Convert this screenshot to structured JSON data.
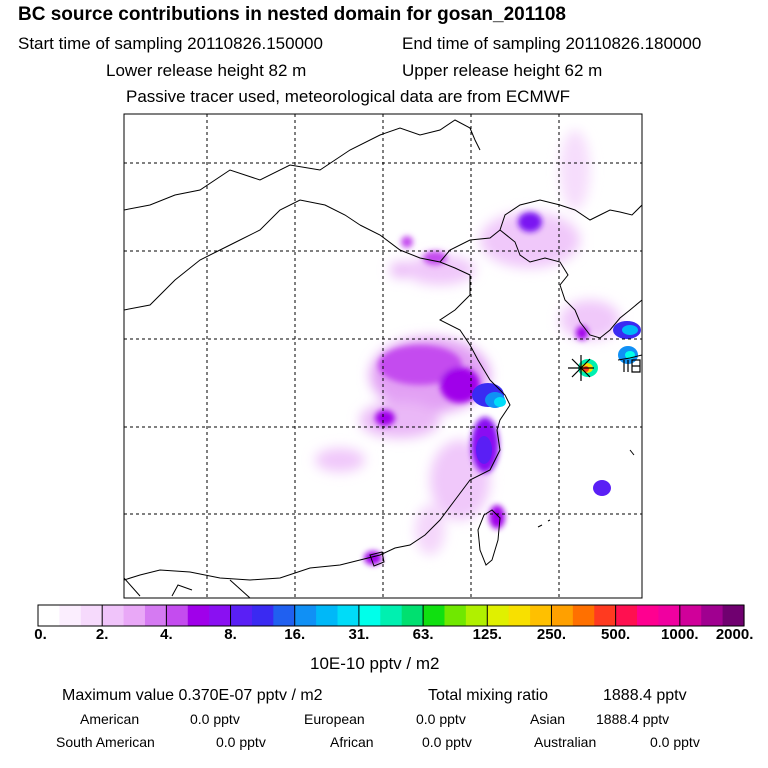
{
  "header": {
    "title": "BC  source contributions in nested domain for gosan_201108",
    "start_label": "Start time of sampling 20110826.150000",
    "end_label": "End time of sampling 20110826.180000",
    "lower_label": "Lower release height   82 m",
    "upper_label": "Upper release height   62 m",
    "tracer_label": "Passive tracer used, meteorological data are from ECMWF"
  },
  "chart_data": {
    "type": "heatmap",
    "title": "BC  source contributions in nested domain for gosan_201108",
    "colorbar": {
      "unit": "10E-10 pptv / m2",
      "ticks": [
        "0.",
        "2.",
        "4.",
        "8.",
        "16.",
        "31.",
        "63.",
        "125.",
        "250.",
        "500.",
        "1000.",
        "2000."
      ],
      "colors": [
        "#ffffff",
        "#fbeefe",
        "#f6dafc",
        "#f0c4fa",
        "#e9a8f7",
        "#d57af2",
        "#c44cef",
        "#a000ea",
        "#8a10f2",
        "#5a1ff5",
        "#3a2af2",
        "#2060f0",
        "#1090f5",
        "#00b8f8",
        "#00dcf8",
        "#00ffea",
        "#00f0b0",
        "#00e070",
        "#10e010",
        "#70e800",
        "#b0f000",
        "#e0f000",
        "#f8e000",
        "#ffc000",
        "#ffa000",
        "#ff7000",
        "#ff3a20",
        "#ff1050",
        "#ff0090",
        "#f000a0",
        "#d0009a",
        "#a00090",
        "#700070"
      ]
    },
    "xlabel": "",
    "ylabel": "",
    "source_marker": "gosan receptor (star)"
  },
  "footer": {
    "max_label": "Maximum value  0.370E-07 pptv / m2",
    "total_label": "Total mixing ratio",
    "total_value": "1888.4 pptv",
    "regions": [
      {
        "name": "American",
        "value": "0.0 pptv"
      },
      {
        "name": "European",
        "value": "0.0 pptv"
      },
      {
        "name": "Asian",
        "value": "1888.4 pptv"
      },
      {
        "name": "South American",
        "value": "0.0 pptv"
      },
      {
        "name": "African",
        "value": "0.0 pptv"
      },
      {
        "name": "Australian",
        "value": "0.0 pptv"
      }
    ]
  }
}
